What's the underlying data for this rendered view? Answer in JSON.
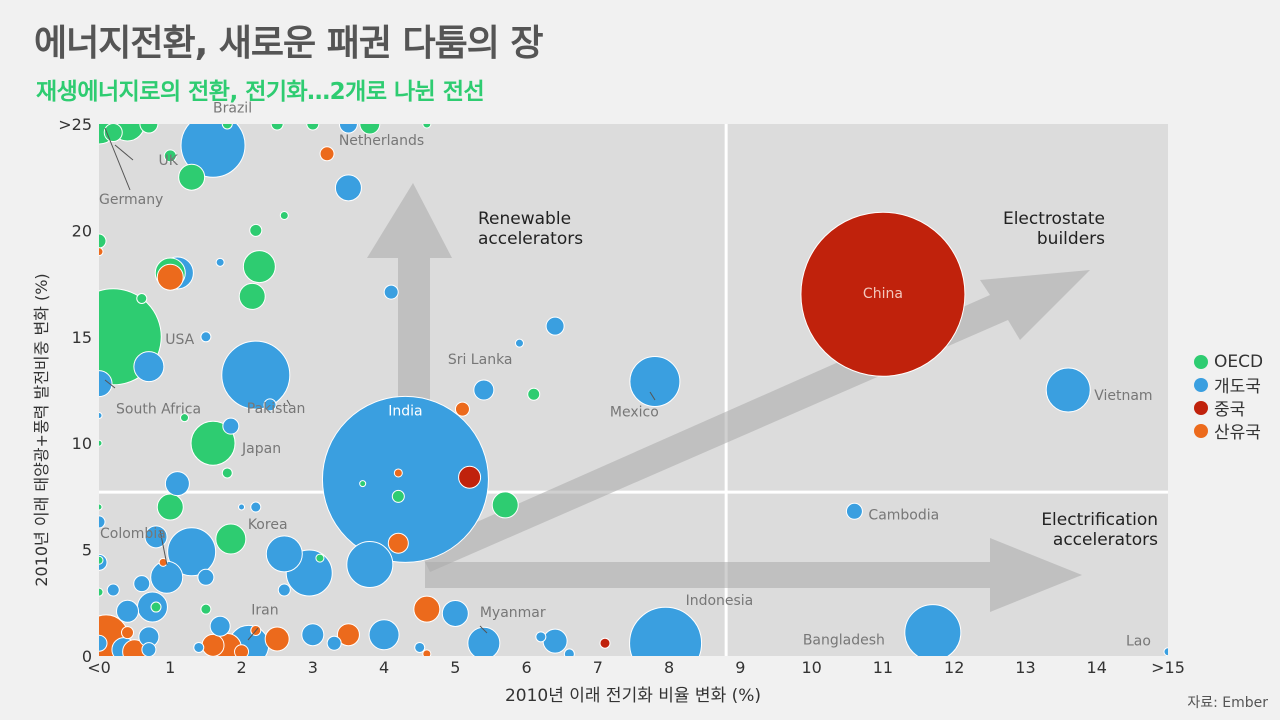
{
  "title": "에너지전환, 새로운 패권 다툼의 장",
  "subtitle": "재생에너지로의 전환, 전기화…2개로 나뉜 전선",
  "source": "자료: Ember",
  "colors": {
    "OECD": "#2ecc71",
    "개도국": "#3a9fe0",
    "중국": "#c0220c",
    "산유국": "#ec6a1c"
  },
  "chart_data": {
    "type": "scatter",
    "xlabel": "2010년 이래 전기화 비율 변화 (%)",
    "ylabel": "2010년 이래 태양광+풍력 발전비중 변화 (%)",
    "xlim": [
      0,
      15
    ],
    "ylim": [
      0,
      25
    ],
    "x_ticks": [
      {
        "v": 0,
        "label": "<0"
      },
      {
        "v": 1,
        "label": "1"
      },
      {
        "v": 2,
        "label": "2"
      },
      {
        "v": 3,
        "label": "3"
      },
      {
        "v": 4,
        "label": "4"
      },
      {
        "v": 5,
        "label": "5"
      },
      {
        "v": 6,
        "label": "6"
      },
      {
        "v": 7,
        "label": "7"
      },
      {
        "v": 8,
        "label": "8"
      },
      {
        "v": 9,
        "label": "9"
      },
      {
        "v": 10,
        "label": "10"
      },
      {
        "v": 11,
        "label": "11"
      },
      {
        "v": 12,
        "label": "12"
      },
      {
        "v": 13,
        "label": "13"
      },
      {
        "v": 14,
        "label": "14"
      },
      {
        "v": 15,
        "label": ">15"
      }
    ],
    "y_ticks": [
      {
        "v": 0,
        "label": "0"
      },
      {
        "v": 5,
        "label": "5"
      },
      {
        "v": 10,
        "label": "10"
      },
      {
        "v": 15,
        "label": "15"
      },
      {
        "v": 20,
        "label": "20"
      },
      {
        "v": 25,
        "label": ">25"
      }
    ],
    "legend": [
      "OECD",
      "개도국",
      "중국",
      "산유국"
    ],
    "legend_position": "right",
    "quadrant_lines": {
      "x": 8.8,
      "y": 7.7
    },
    "quadrant_labels": [
      {
        "text": [
          "Renewable",
          "accelerators"
        ],
        "x": 4.8,
        "y": 20.5
      },
      {
        "text": [
          "Electrostate",
          "builders"
        ],
        "x": 12.8,
        "y": 20.5
      },
      {
        "text": [
          "Electrification",
          "accelerators"
        ],
        "x": 12.8,
        "y": 5.8
      }
    ],
    "points": [
      {
        "name": "China",
        "group": "중국",
        "x": 11.0,
        "y": 17.0,
        "r": 82,
        "label_inside": true
      },
      {
        "name": "India",
        "group": "개도국",
        "x": 4.3,
        "y": 8.3,
        "r": 83,
        "label_above": true
      },
      {
        "name": "Vietnam",
        "group": "개도국",
        "x": 13.6,
        "y": 12.5,
        "r": 22
      },
      {
        "name": "Mexico",
        "group": "개도국",
        "x": 7.8,
        "y": 12.9,
        "r": 25
      },
      {
        "name": "Sri Lanka",
        "group": "개도국",
        "x": 5.4,
        "y": 12.5,
        "r": 10
      },
      {
        "name": "Cambodia",
        "group": "개도국",
        "x": 10.6,
        "y": 6.8,
        "r": 8
      },
      {
        "name": "Bangladesh",
        "group": "개도국",
        "x": 11.7,
        "y": 1.1,
        "r": 28
      },
      {
        "name": "Indonesia",
        "group": "개도국",
        "x": 7.95,
        "y": 0.6,
        "r": 36
      },
      {
        "name": "Myanmar",
        "group": "개도국",
        "x": 5.4,
        "y": 0.6,
        "r": 16
      },
      {
        "name": "Lao",
        "group": "개도국",
        "x": 15.0,
        "y": 0.2,
        "r": 4
      },
      {
        "name": "Brazil",
        "group": "개도국",
        "x": 1.6,
        "y": 24.0,
        "r": 32
      },
      {
        "name": "Pakistan",
        "group": "개도국",
        "x": 2.2,
        "y": 13.2,
        "r": 34
      },
      {
        "name": "South Africa",
        "group": "개도국",
        "x": 0.0,
        "y": 12.8,
        "r": 13
      },
      {
        "name": "Colombia",
        "group": "개도국",
        "x": 0.8,
        "y": 5.6,
        "r": 11
      },
      {
        "name": "Iran",
        "group": "산유국",
        "x": 1.8,
        "y": 0.4,
        "r": 14
      },
      {
        "name": "USA",
        "group": "OECD",
        "x": 0.2,
        "y": 15.0,
        "r": 48
      },
      {
        "name": "Japan",
        "group": "OECD",
        "x": 1.6,
        "y": 10.0,
        "r": 22
      },
      {
        "name": "Korea",
        "group": "OECD",
        "x": 1.85,
        "y": 5.5,
        "r": 15
      },
      {
        "name": "Netherlands",
        "group": "OECD",
        "x": 3.8,
        "y": 25.0,
        "r": 10
      },
      {
        "name": "UK",
        "group": "OECD",
        "x": 0.4,
        "y": 25.0,
        "r": 17
      },
      {
        "name": "Germany",
        "group": "OECD",
        "x": 0.0,
        "y": 25.0,
        "r": 20
      },
      {
        "name": "",
        "group": "OECD",
        "x": 1.3,
        "y": 22.5,
        "r": 13
      },
      {
        "name": "",
        "group": "OECD",
        "x": 2.25,
        "y": 18.3,
        "r": 16
      },
      {
        "name": "",
        "group": "OECD",
        "x": 2.15,
        "y": 16.9,
        "r": 13
      },
      {
        "name": "",
        "group": "OECD",
        "x": 1.0,
        "y": 18.0,
        "r": 15
      },
      {
        "name": "",
        "group": "OECD",
        "x": 1.0,
        "y": 7.0,
        "r": 13
      },
      {
        "name": "",
        "group": "OECD",
        "x": 5.7,
        "y": 7.1,
        "r": 13
      },
      {
        "name": "",
        "group": "OECD",
        "x": 6.1,
        "y": 12.3,
        "r": 6
      },
      {
        "name": "",
        "group": "OECD",
        "x": 2.2,
        "y": 20.0,
        "r": 6
      },
      {
        "name": "",
        "group": "OECD",
        "x": 1.0,
        "y": 23.5,
        "r": 6
      },
      {
        "name": "",
        "group": "OECD",
        "x": 0.0,
        "y": 19.5,
        "r": 7
      },
      {
        "name": "",
        "group": "OECD",
        "x": 0.6,
        "y": 16.8,
        "r": 5
      },
      {
        "name": "",
        "group": "OECD",
        "x": 2.6,
        "y": 20.7,
        "r": 4
      },
      {
        "name": "",
        "group": "OECD",
        "x": 1.8,
        "y": 8.6,
        "r": 5
      },
      {
        "name": "",
        "group": "OECD",
        "x": 1.5,
        "y": 2.2,
        "r": 5
      },
      {
        "name": "",
        "group": "OECD",
        "x": 0.8,
        "y": 2.3,
        "r": 5
      },
      {
        "name": "",
        "group": "OECD",
        "x": 4.2,
        "y": 7.5,
        "r": 6
      },
      {
        "name": "",
        "group": "OECD",
        "x": 3.0,
        "y": 25.0,
        "r": 6
      },
      {
        "name": "",
        "group": "OECD",
        "x": 2.5,
        "y": 25.0,
        "r": 6
      },
      {
        "name": "",
        "group": "OECD",
        "x": 4.6,
        "y": 25.0,
        "r": 4
      },
      {
        "name": "",
        "group": "OECD",
        "x": 0.2,
        "y": 24.6,
        "r": 9
      },
      {
        "name": "",
        "group": "OECD",
        "x": 0.7,
        "y": 25.0,
        "r": 9
      },
      {
        "name": "",
        "group": "OECD",
        "x": 1.2,
        "y": 11.2,
        "r": 4
      },
      {
        "name": "",
        "group": "OECD",
        "x": 3.1,
        "y": 4.6,
        "r": 4
      },
      {
        "name": "",
        "group": "OECD",
        "x": 3.7,
        "y": 8.1,
        "r": 3
      },
      {
        "name": "",
        "group": "OECD",
        "x": 0.0,
        "y": 4.5,
        "r": 4
      },
      {
        "name": "",
        "group": "OECD",
        "x": 0.0,
        "y": 7.0,
        "r": 3
      },
      {
        "name": "",
        "group": "OECD",
        "x": 0.0,
        "y": 10.0,
        "r": 3
      },
      {
        "name": "",
        "group": "OECD",
        "x": 0.0,
        "y": 3.0,
        "r": 4
      },
      {
        "name": "",
        "group": "OECD",
        "x": 1.8,
        "y": 25.0,
        "r": 5
      },
      {
        "name": "",
        "group": "개도국",
        "x": 3.5,
        "y": 22.0,
        "r": 13
      },
      {
        "name": "",
        "group": "개도국",
        "x": 6.4,
        "y": 15.5,
        "r": 9
      },
      {
        "name": "",
        "group": "개도국",
        "x": 4.1,
        "y": 17.1,
        "r": 7
      },
      {
        "name": "",
        "group": "개도국",
        "x": 1.1,
        "y": 18.0,
        "r": 16
      },
      {
        "name": "",
        "group": "개도국",
        "x": 0.7,
        "y": 13.6,
        "r": 15
      },
      {
        "name": "",
        "group": "개도국",
        "x": 2.4,
        "y": 11.8,
        "r": 6
      },
      {
        "name": "",
        "group": "개도국",
        "x": 1.85,
        "y": 10.8,
        "r": 8
      },
      {
        "name": "",
        "group": "개도국",
        "x": 1.1,
        "y": 8.1,
        "r": 12
      },
      {
        "name": "",
        "group": "개도국",
        "x": 2.2,
        "y": 7.0,
        "r": 5
      },
      {
        "name": "",
        "group": "개도국",
        "x": 1.3,
        "y": 4.9,
        "r": 24
      },
      {
        "name": "",
        "group": "개도국",
        "x": 0.95,
        "y": 3.7,
        "r": 16
      },
      {
        "name": "",
        "group": "개도국",
        "x": 0.6,
        "y": 3.4,
        "r": 8
      },
      {
        "name": "",
        "group": "개도국",
        "x": 2.6,
        "y": 4.8,
        "r": 18
      },
      {
        "name": "",
        "group": "개도국",
        "x": 2.95,
        "y": 3.9,
        "r": 23
      },
      {
        "name": "",
        "group": "개도국",
        "x": 3.8,
        "y": 4.3,
        "r": 23
      },
      {
        "name": "",
        "group": "개도국",
        "x": 0.75,
        "y": 2.3,
        "r": 15
      },
      {
        "name": "",
        "group": "개도국",
        "x": 0.4,
        "y": 2.1,
        "r": 11
      },
      {
        "name": "",
        "group": "개도국",
        "x": 1.7,
        "y": 1.4,
        "r": 10
      },
      {
        "name": "",
        "group": "개도국",
        "x": 0.7,
        "y": 0.9,
        "r": 10
      },
      {
        "name": "",
        "group": "개도국",
        "x": 2.1,
        "y": 0.5,
        "r": 20
      },
      {
        "name": "",
        "group": "개도국",
        "x": 0.35,
        "y": 0.3,
        "r": 12
      },
      {
        "name": "",
        "group": "개도국",
        "x": 3.0,
        "y": 1.0,
        "r": 11
      },
      {
        "name": "",
        "group": "개도국",
        "x": 4.0,
        "y": 1.0,
        "r": 15
      },
      {
        "name": "",
        "group": "개도국",
        "x": 5.0,
        "y": 2.0,
        "r": 13
      },
      {
        "name": "",
        "group": "개도국",
        "x": 6.4,
        "y": 0.7,
        "r": 12
      },
      {
        "name": "",
        "group": "개도국",
        "x": 0.0,
        "y": 6.3,
        "r": 6
      },
      {
        "name": "",
        "group": "개도국",
        "x": 0.0,
        "y": 4.4,
        "r": 8
      },
      {
        "name": "",
        "group": "개도국",
        "x": 0.0,
        "y": 0.6,
        "r": 8
      },
      {
        "name": "",
        "group": "개도국",
        "x": 0.2,
        "y": 3.1,
        "r": 6
      },
      {
        "name": "",
        "group": "개도국",
        "x": 2.6,
        "y": 3.1,
        "r": 6
      },
      {
        "name": "",
        "group": "개도국",
        "x": 1.5,
        "y": 3.7,
        "r": 8
      },
      {
        "name": "",
        "group": "개도국",
        "x": 0.7,
        "y": 0.3,
        "r": 7
      },
      {
        "name": "",
        "group": "개도국",
        "x": 3.3,
        "y": 0.6,
        "r": 7
      },
      {
        "name": "",
        "group": "개도국",
        "x": 6.6,
        "y": 0.1,
        "r": 5
      },
      {
        "name": "",
        "group": "개도국",
        "x": 4.5,
        "y": 0.4,
        "r": 5
      },
      {
        "name": "",
        "group": "개도국",
        "x": 1.4,
        "y": 0.4,
        "r": 5
      },
      {
        "name": "",
        "group": "개도국",
        "x": 5.9,
        "y": 14.7,
        "r": 4
      },
      {
        "name": "",
        "group": "개도국",
        "x": 1.5,
        "y": 15.0,
        "r": 5
      },
      {
        "name": "",
        "group": "개도국",
        "x": 1.7,
        "y": 18.5,
        "r": 4
      },
      {
        "name": "",
        "group": "개도국",
        "x": 3.5,
        "y": 25.0,
        "r": 9
      },
      {
        "name": "",
        "group": "개도국",
        "x": 0.0,
        "y": 11.3,
        "r": 3
      },
      {
        "name": "",
        "group": "개도국",
        "x": 2.0,
        "y": 7.0,
        "r": 3
      },
      {
        "name": "",
        "group": "개도국",
        "x": 6.2,
        "y": 0.9,
        "r": 5
      },
      {
        "name": "",
        "group": "산유국",
        "x": 1.0,
        "y": 17.8,
        "r": 13
      },
      {
        "name": "",
        "group": "산유국",
        "x": 3.2,
        "y": 23.6,
        "r": 7
      },
      {
        "name": "",
        "group": "산유국",
        "x": 0.0,
        "y": 19.0,
        "r": 4
      },
      {
        "name": "",
        "group": "산유국",
        "x": 5.1,
        "y": 11.6,
        "r": 7
      },
      {
        "name": "",
        "group": "산유국",
        "x": 4.2,
        "y": 5.3,
        "r": 10
      },
      {
        "name": "",
        "group": "산유국",
        "x": 4.6,
        "y": 2.2,
        "r": 13
      },
      {
        "name": "",
        "group": "산유국",
        "x": 3.5,
        "y": 1.0,
        "r": 11
      },
      {
        "name": "",
        "group": "산유국",
        "x": 2.5,
        "y": 0.8,
        "r": 12
      },
      {
        "name": "",
        "group": "산유국",
        "x": 0.1,
        "y": 0.9,
        "r": 22
      },
      {
        "name": "",
        "group": "산유국",
        "x": 0.5,
        "y": 0.2,
        "r": 12
      },
      {
        "name": "",
        "group": "산유국",
        "x": 1.6,
        "y": 0.5,
        "r": 11
      },
      {
        "name": "",
        "group": "산유국",
        "x": 2.0,
        "y": 0.2,
        "r": 7
      },
      {
        "name": "",
        "group": "산유국",
        "x": 0.9,
        "y": 4.4,
        "r": 4
      },
      {
        "name": "",
        "group": "산유국",
        "x": 4.2,
        "y": 8.6,
        "r": 4
      },
      {
        "name": "",
        "group": "산유국",
        "x": 4.6,
        "y": 0.1,
        "r": 4
      },
      {
        "name": "",
        "group": "산유국",
        "x": 0.4,
        "y": 1.1,
        "r": 6
      },
      {
        "name": "",
        "group": "산유국",
        "x": 2.2,
        "y": 1.2,
        "r": 5
      },
      {
        "name": "",
        "group": "중국",
        "x": 5.2,
        "y": 8.4,
        "r": 11
      },
      {
        "name": "",
        "group": "중국",
        "x": 7.1,
        "y": 0.6,
        "r": 5
      }
    ]
  }
}
